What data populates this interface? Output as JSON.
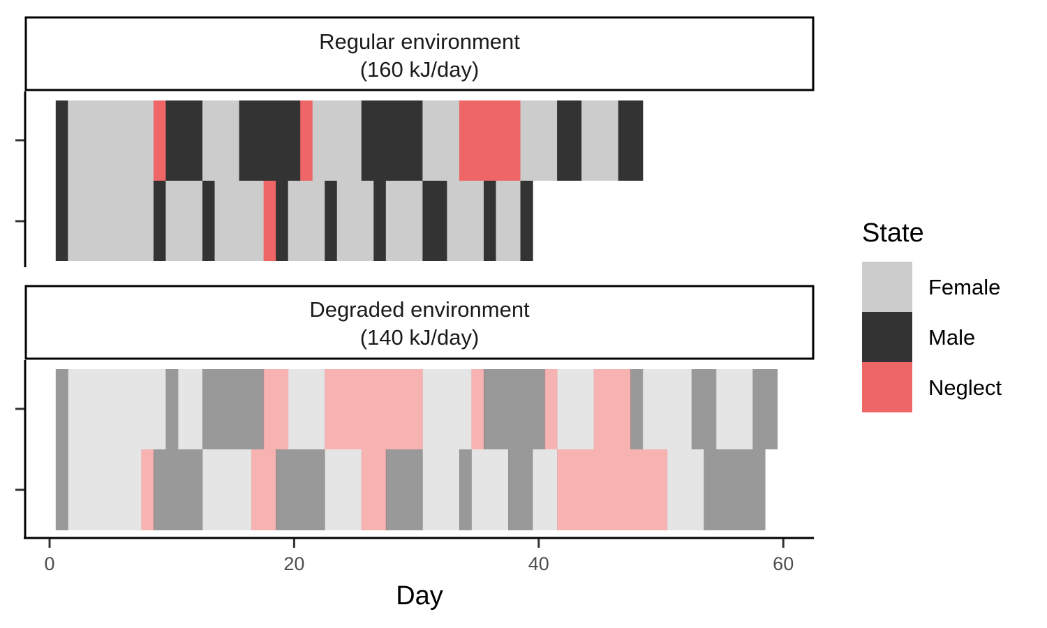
{
  "chart_data": {
    "type": "bar",
    "xlabel": "Day",
    "xlim": [
      -2,
      62.5
    ],
    "xticks": [
      0,
      20,
      40,
      60
    ],
    "grid": false,
    "legend": {
      "title": "State",
      "position": "right",
      "entries": [
        {
          "name": "Female",
          "color": "#cccccc"
        },
        {
          "name": "Male",
          "color": "#333333"
        },
        {
          "name": "Neglect",
          "color": "#ef6666"
        }
      ]
    },
    "panels": [
      {
        "title_line1": "Regular environment",
        "title_line2": "(160 kJ/day)",
        "alpha": 1,
        "rows": [
          {
            "row": 1,
            "segments": [
              {
                "start": 0.5,
                "end": 1.5,
                "state": "Male"
              },
              {
                "start": 1.5,
                "end": 8.5,
                "state": "Female"
              },
              {
                "start": 8.5,
                "end": 9.5,
                "state": "Neglect"
              },
              {
                "start": 9.5,
                "end": 12.5,
                "state": "Male"
              },
              {
                "start": 12.5,
                "end": 15.5,
                "state": "Female"
              },
              {
                "start": 15.5,
                "end": 20.5,
                "state": "Male"
              },
              {
                "start": 20.5,
                "end": 21.5,
                "state": "Neglect"
              },
              {
                "start": 21.5,
                "end": 25.5,
                "state": "Female"
              },
              {
                "start": 25.5,
                "end": 30.5,
                "state": "Male"
              },
              {
                "start": 30.5,
                "end": 33.5,
                "state": "Female"
              },
              {
                "start": 33.5,
                "end": 38.5,
                "state": "Neglect"
              },
              {
                "start": 38.5,
                "end": 41.5,
                "state": "Female"
              },
              {
                "start": 41.5,
                "end": 43.5,
                "state": "Male"
              },
              {
                "start": 43.5,
                "end": 46.5,
                "state": "Female"
              },
              {
                "start": 46.5,
                "end": 48.5,
                "state": "Male"
              }
            ]
          },
          {
            "row": 2,
            "segments": [
              {
                "start": 0.5,
                "end": 1.5,
                "state": "Male"
              },
              {
                "start": 1.5,
                "end": 8.5,
                "state": "Female"
              },
              {
                "start": 8.5,
                "end": 9.5,
                "state": "Male"
              },
              {
                "start": 9.5,
                "end": 12.5,
                "state": "Female"
              },
              {
                "start": 12.5,
                "end": 13.5,
                "state": "Male"
              },
              {
                "start": 13.5,
                "end": 17.5,
                "state": "Female"
              },
              {
                "start": 17.5,
                "end": 18.5,
                "state": "Neglect"
              },
              {
                "start": 18.5,
                "end": 19.5,
                "state": "Male"
              },
              {
                "start": 19.5,
                "end": 22.5,
                "state": "Female"
              },
              {
                "start": 22.5,
                "end": 23.5,
                "state": "Male"
              },
              {
                "start": 23.5,
                "end": 26.5,
                "state": "Female"
              },
              {
                "start": 26.5,
                "end": 27.5,
                "state": "Male"
              },
              {
                "start": 27.5,
                "end": 30.5,
                "state": "Female"
              },
              {
                "start": 30.5,
                "end": 32.5,
                "state": "Male"
              },
              {
                "start": 32.5,
                "end": 35.5,
                "state": "Female"
              },
              {
                "start": 35.5,
                "end": 36.5,
                "state": "Male"
              },
              {
                "start": 36.5,
                "end": 38.5,
                "state": "Female"
              },
              {
                "start": 38.5,
                "end": 39.5,
                "state": "Male"
              }
            ]
          }
        ]
      },
      {
        "title_line1": "Degraded environment",
        "title_line2": "(140 kJ/day)",
        "alpha": 0.5,
        "rows": [
          {
            "row": 1,
            "segments": [
              {
                "start": 0.5,
                "end": 1.5,
                "state": "Male"
              },
              {
                "start": 1.5,
                "end": 9.5,
                "state": "Female"
              },
              {
                "start": 9.5,
                "end": 10.5,
                "state": "Male"
              },
              {
                "start": 10.5,
                "end": 12.5,
                "state": "Female"
              },
              {
                "start": 12.5,
                "end": 17.5,
                "state": "Male"
              },
              {
                "start": 17.5,
                "end": 19.5,
                "state": "Neglect"
              },
              {
                "start": 19.5,
                "end": 22.5,
                "state": "Female"
              },
              {
                "start": 22.5,
                "end": 30.5,
                "state": "Neglect"
              },
              {
                "start": 30.5,
                "end": 34.5,
                "state": "Female"
              },
              {
                "start": 34.5,
                "end": 35.5,
                "state": "Neglect"
              },
              {
                "start": 35.5,
                "end": 40.5,
                "state": "Male"
              },
              {
                "start": 40.5,
                "end": 41.5,
                "state": "Neglect"
              },
              {
                "start": 41.5,
                "end": 44.5,
                "state": "Female"
              },
              {
                "start": 44.5,
                "end": 47.5,
                "state": "Neglect"
              },
              {
                "start": 47.5,
                "end": 48.5,
                "state": "Male"
              },
              {
                "start": 48.5,
                "end": 52.5,
                "state": "Female"
              },
              {
                "start": 52.5,
                "end": 54.5,
                "state": "Male"
              },
              {
                "start": 54.5,
                "end": 57.5,
                "state": "Female"
              },
              {
                "start": 57.5,
                "end": 59.5,
                "state": "Male"
              }
            ]
          },
          {
            "row": 2,
            "segments": [
              {
                "start": 0.5,
                "end": 1.5,
                "state": "Male"
              },
              {
                "start": 1.5,
                "end": 7.5,
                "state": "Female"
              },
              {
                "start": 7.5,
                "end": 8.5,
                "state": "Neglect"
              },
              {
                "start": 8.5,
                "end": 12.5,
                "state": "Male"
              },
              {
                "start": 12.5,
                "end": 16.5,
                "state": "Female"
              },
              {
                "start": 16.5,
                "end": 18.5,
                "state": "Neglect"
              },
              {
                "start": 18.5,
                "end": 22.5,
                "state": "Male"
              },
              {
                "start": 22.5,
                "end": 25.5,
                "state": "Female"
              },
              {
                "start": 25.5,
                "end": 27.5,
                "state": "Neglect"
              },
              {
                "start": 27.5,
                "end": 30.5,
                "state": "Male"
              },
              {
                "start": 30.5,
                "end": 33.5,
                "state": "Female"
              },
              {
                "start": 33.5,
                "end": 34.5,
                "state": "Male"
              },
              {
                "start": 34.5,
                "end": 37.5,
                "state": "Female"
              },
              {
                "start": 37.5,
                "end": 39.5,
                "state": "Male"
              },
              {
                "start": 39.5,
                "end": 41.5,
                "state": "Female"
              },
              {
                "start": 41.5,
                "end": 50.5,
                "state": "Neglect"
              },
              {
                "start": 50.5,
                "end": 53.5,
                "state": "Female"
              },
              {
                "start": 53.5,
                "end": 58.5,
                "state": "Male"
              }
            ]
          }
        ]
      }
    ]
  }
}
